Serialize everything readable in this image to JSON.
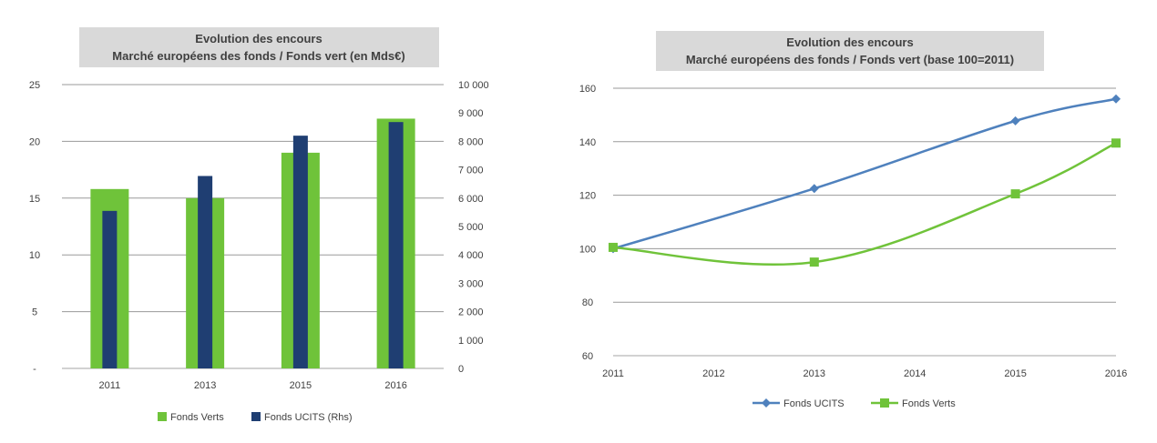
{
  "chart_data": [
    {
      "type": "bar",
      "title_line1": "Evolution des encours",
      "title_line2": "Marché européens des fonds / Fonds vert (en Mds€)",
      "categories": [
        "2011",
        "2013",
        "2015",
        "2016"
      ],
      "series": [
        {
          "name": "Fonds Verts",
          "axis": "left",
          "values": [
            15.8,
            15.0,
            19.0,
            22.0
          ],
          "color": "#6FC33A"
        },
        {
          "name": "Fonds UCITS (Rhs)",
          "axis": "right",
          "values": [
            5550,
            6780,
            8200,
            8680
          ],
          "color": "#1F3E72"
        }
      ],
      "y_left": {
        "min": 0,
        "max": 25,
        "ticks": [
          "-",
          "5",
          "10",
          "15",
          "20",
          "25"
        ]
      },
      "y_right": {
        "min": 0,
        "max": 10000,
        "ticks": [
          "0",
          "1 000",
          "2 000",
          "3 000",
          "4 000",
          "5 000",
          "6 000",
          "7 000",
          "8 000",
          "9 000",
          "10 000"
        ]
      },
      "grid": true,
      "legend_position": "bottom"
    },
    {
      "type": "line",
      "title_line1": "Evolution des encours",
      "title_line2": "Marché européens des fonds / Fonds vert (base 100=2011)",
      "x_ticks": [
        "2011",
        "2012",
        "2013",
        "2014",
        "2015",
        "2016"
      ],
      "x_range": [
        2011,
        2016
      ],
      "series": [
        {
          "name": "Fonds UCITS",
          "marker": "diamond",
          "color": "#4F81BD",
          "points": [
            [
              2011,
              100
            ],
            [
              2013,
              122.5
            ],
            [
              2015,
              147.8
            ],
            [
              2016,
              156
            ]
          ]
        },
        {
          "name": "Fonds Verts",
          "marker": "square",
          "color": "#70C33A",
          "points": [
            [
              2011,
              100.5
            ],
            [
              2013,
              95
            ],
            [
              2015,
              120.5
            ],
            [
              2016,
              139.5
            ]
          ]
        }
      ],
      "y": {
        "min": 60,
        "max": 160,
        "ticks": [
          "60",
          "80",
          "100",
          "120",
          "140",
          "160"
        ]
      },
      "grid": true,
      "legend_position": "bottom"
    }
  ],
  "colors": {
    "title_box": "#D9D9D9",
    "grid": "#9A9A9A",
    "text": "#404040"
  }
}
